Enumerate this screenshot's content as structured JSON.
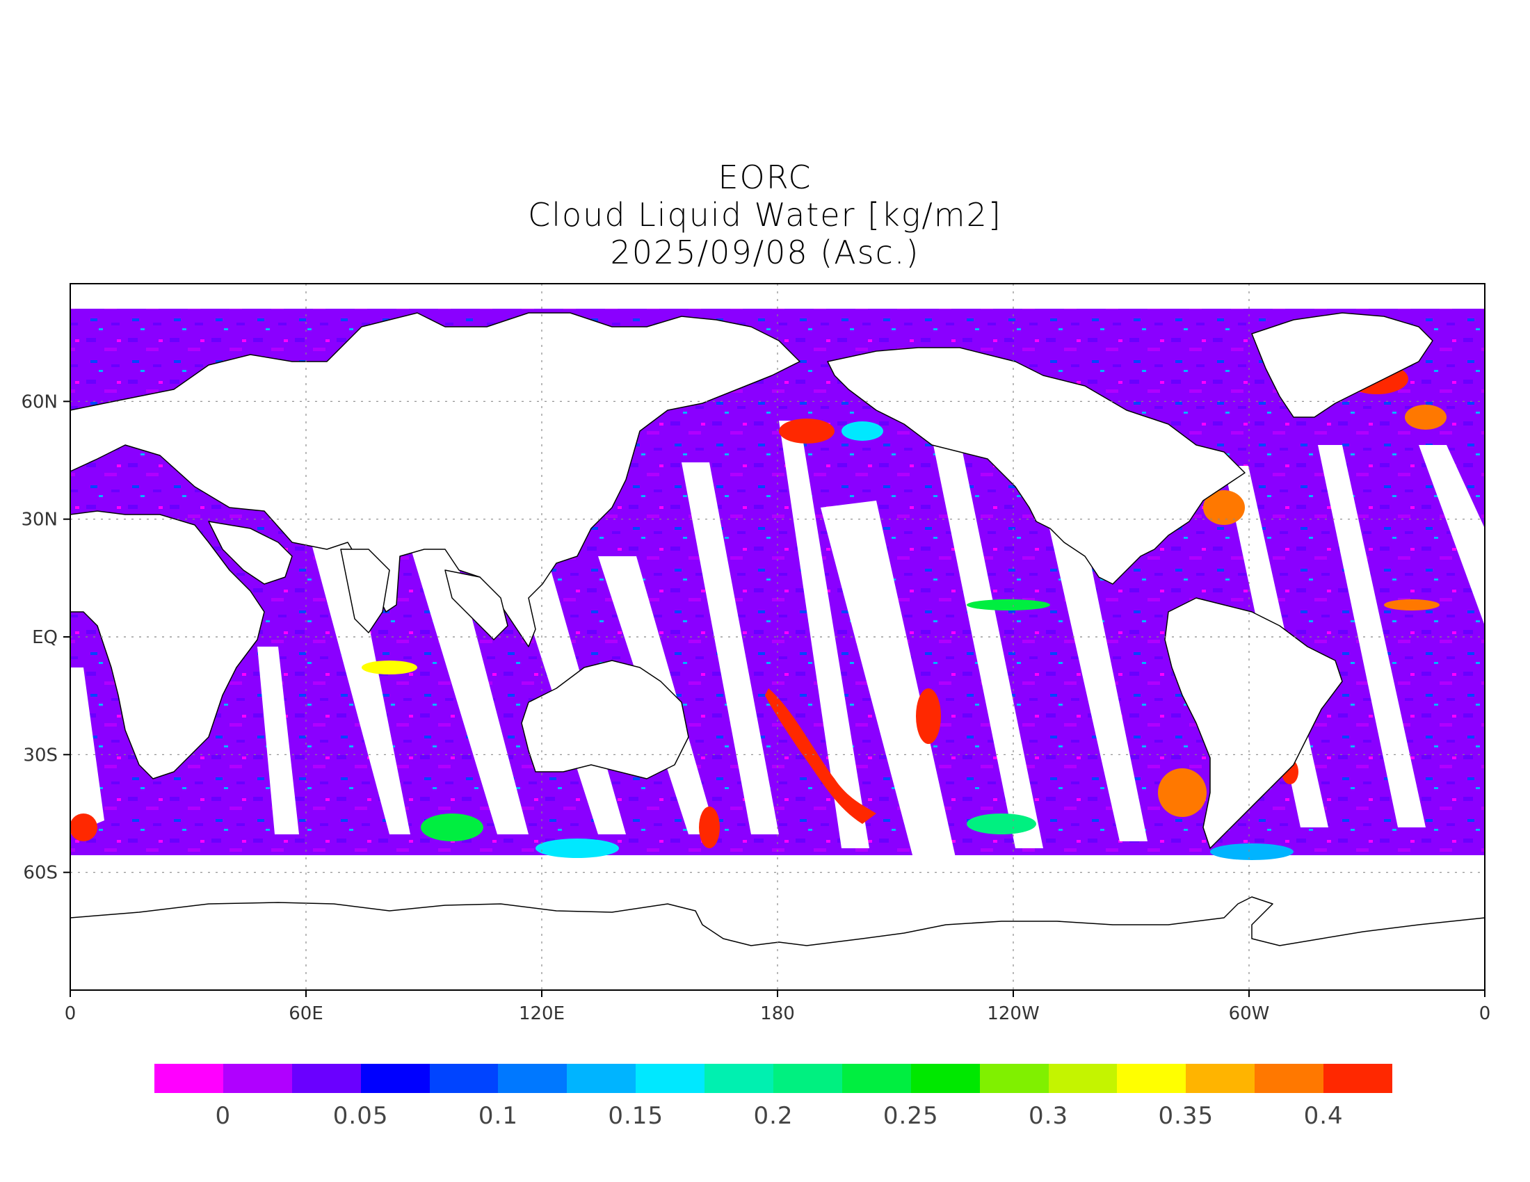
{
  "title": {
    "line1": "EORC",
    "line2": "Cloud Liquid Water [kg/m2]",
    "line3": "2025/09/08 (Asc.)"
  },
  "map": {
    "projection": "equirectangular",
    "lon_range": [
      0,
      360
    ],
    "lat_range": [
      -90,
      90
    ],
    "x_tick_labels": [
      "0",
      "60E",
      "120E",
      "180",
      "120W",
      "60W",
      "0"
    ],
    "y_tick_labels": [
      "60N",
      "30N",
      "EQ",
      "30S",
      "60S"
    ],
    "grid": "dotted"
  },
  "colorbar": {
    "colors": [
      "#ff00ff",
      "#b000ff",
      "#6a00ff",
      "#0000ff",
      "#0044ff",
      "#0078ff",
      "#00b4ff",
      "#00e8ff",
      "#00f0b0",
      "#00f080",
      "#00ee40",
      "#00e800",
      "#80f000",
      "#c4f400",
      "#ffff00",
      "#ffb400",
      "#ff7800",
      "#ff2800"
    ],
    "labels": [
      "0",
      "0.05",
      "0.1",
      "0.15",
      "0.2",
      "0.25",
      "0.3",
      "0.35",
      "0.4"
    ]
  },
  "colors": {
    "ocean_base": "#8a00ff",
    "land": "#ffffff",
    "coastline": "#000000"
  }
}
